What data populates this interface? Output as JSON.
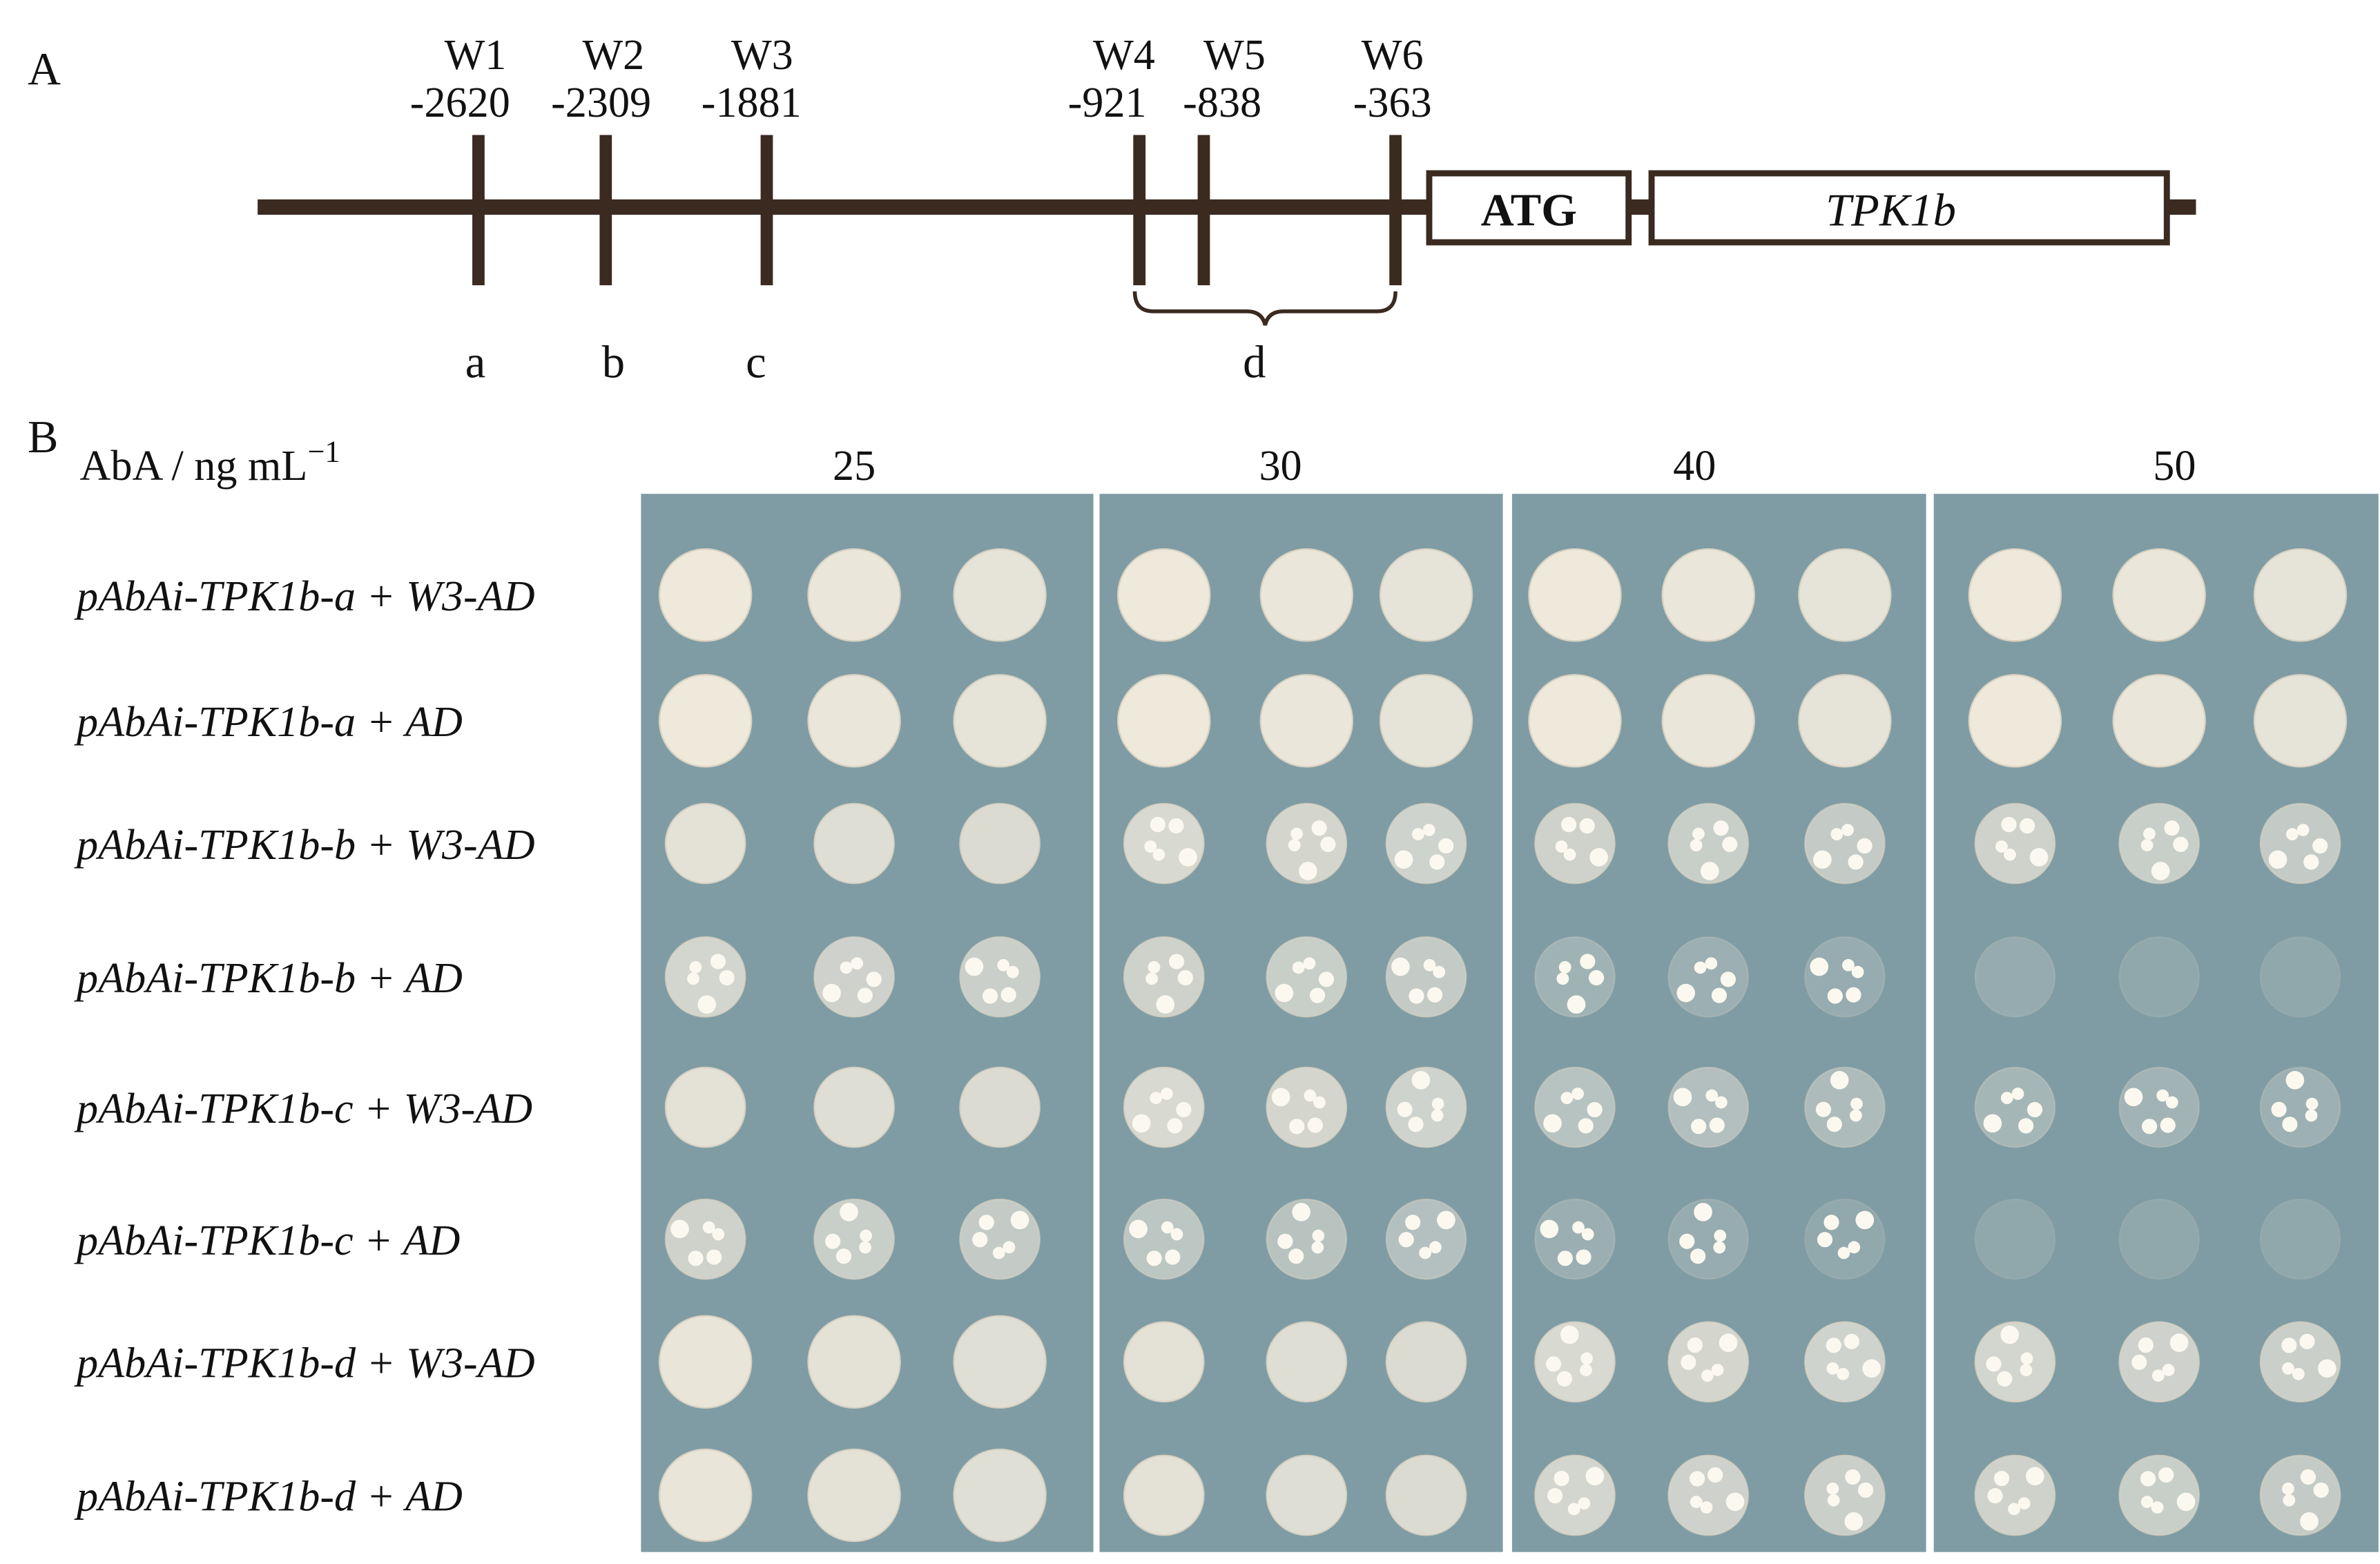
{
  "panel_a": {
    "label": "A",
    "sites": [
      {
        "name": "W1",
        "position": "-2620"
      },
      {
        "name": "W2",
        "position": "-2309"
      },
      {
        "name": "W3",
        "position": "-1881"
      },
      {
        "name": "W4",
        "position": "-921"
      },
      {
        "name": "W5",
        "position": "-838"
      },
      {
        "name": "W6",
        "position": "-363"
      }
    ],
    "regions": [
      "a",
      "b",
      "c",
      "d"
    ],
    "boxes": [
      "ATG",
      "TPK1b"
    ]
  },
  "panel_b": {
    "label": "B",
    "axis_label": "AbA / ng mL",
    "axis_exponent": "−1",
    "concentrations": [
      "25",
      "30",
      "40",
      "50"
    ],
    "rows": [
      "pAbAi-TPK1b-a + W3-AD",
      "pAbAi-TPK1b-a + AD",
      "pAbAi-TPK1b-b + W3-AD",
      "pAbAi-TPK1b-b + AD",
      "pAbAi-TPK1b-c + W3-AD",
      "pAbAi-TPK1b-c + AD",
      "pAbAi-TPK1b-d + W3-AD",
      "pAbAi-TPK1b-d + AD"
    ]
  }
}
